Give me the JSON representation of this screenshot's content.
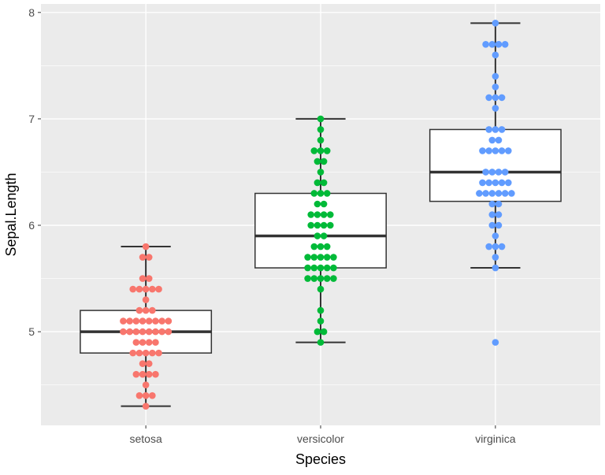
{
  "chart_data": {
    "type": "boxplot",
    "xlabel": "Species",
    "ylabel": "Sepal.Length",
    "categories": [
      "setosa",
      "versicolor",
      "virginica"
    ],
    "ylim": [
      4.12,
      8.08
    ],
    "yticks": [
      5,
      6,
      7,
      8
    ],
    "grid": true,
    "legend": "none",
    "colors": {
      "setosa": "#F8766D",
      "versicolor": "#00BA38",
      "virginica": "#619CFF",
      "panel": "#EBEBEB",
      "grid": "#FFFFFF"
    },
    "boxes": [
      {
        "category": "setosa",
        "lower_whisker": 4.3,
        "q1": 4.8,
        "median": 5.0,
        "q3": 5.2,
        "upper_whisker": 5.8
      },
      {
        "category": "versicolor",
        "lower_whisker": 4.9,
        "q1": 5.6,
        "median": 5.9,
        "q3": 6.3,
        "upper_whisker": 7.0
      },
      {
        "category": "virginica",
        "lower_whisker": 5.6,
        "q1": 6.225,
        "median": 6.5,
        "q3": 6.9,
        "upper_whisker": 7.9,
        "outliers": [
          4.9
        ]
      }
    ],
    "dot_counts": {
      "setosa": {
        "4.3": 1,
        "4.4": 3,
        "4.5": 1,
        "4.6": 4,
        "4.7": 2,
        "4.8": 5,
        "4.9": 4,
        "5.0": 8,
        "5.1": 8,
        "5.2": 3,
        "5.3": 1,
        "5.4": 5,
        "5.5": 2,
        "5.7": 2,
        "5.8": 1
      },
      "versicolor": {
        "4.9": 1,
        "5.0": 2,
        "5.1": 1,
        "5.2": 1,
        "5.4": 1,
        "5.5": 5,
        "5.6": 5,
        "5.7": 5,
        "5.8": 3,
        "5.9": 2,
        "6.0": 4,
        "6.1": 4,
        "6.2": 2,
        "6.3": 3,
        "6.4": 2,
        "6.5": 1,
        "6.6": 2,
        "6.7": 3,
        "6.8": 1,
        "6.9": 1,
        "7.0": 1
      },
      "virginica": {
        "4.9": 1,
        "5.6": 1,
        "5.7": 1,
        "5.8": 3,
        "5.9": 1,
        "6.0": 2,
        "6.1": 2,
        "6.2": 2,
        "6.3": 6,
        "6.4": 5,
        "6.5": 4,
        "6.7": 5,
        "6.8": 2,
        "6.9": 3,
        "7.1": 1,
        "7.2": 3,
        "7.3": 1,
        "7.4": 1,
        "7.6": 1,
        "7.7": 4,
        "7.9": 1
      }
    }
  }
}
